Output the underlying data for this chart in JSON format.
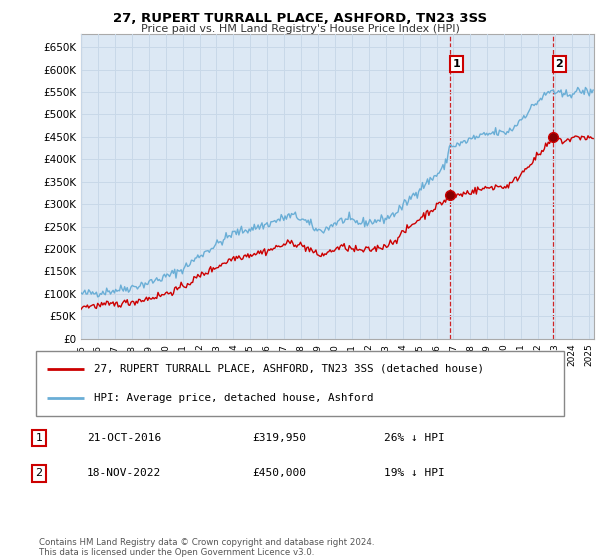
{
  "title": "27, RUPERT TURRALL PLACE, ASHFORD, TN23 3SS",
  "subtitle": "Price paid vs. HM Land Registry's House Price Index (HPI)",
  "ytick_values": [
    0,
    50000,
    100000,
    150000,
    200000,
    250000,
    300000,
    350000,
    400000,
    450000,
    500000,
    550000,
    600000,
    650000
  ],
  "ylim": [
    0,
    680000
  ],
  "xlim_start": 1995.0,
  "xlim_end": 2025.3,
  "hpi_color": "#6aaed6",
  "sale_color": "#cc0000",
  "vline_color": "#cc0000",
  "grid_color": "#c8d8e8",
  "plot_bg_color": "#dce8f4",
  "background_color": "#ffffff",
  "sale1_x": 2016.8,
  "sale1_y": 319950,
  "sale1_label": "1",
  "sale2_x": 2022.88,
  "sale2_y": 450000,
  "sale2_label": "2",
  "legend_line1": "27, RUPERT TURRALL PLACE, ASHFORD, TN23 3SS (detached house)",
  "legend_line2": "HPI: Average price, detached house, Ashford",
  "note1_num": "1",
  "note1_date": "21-OCT-2016",
  "note1_price": "£319,950",
  "note1_hpi": "26% ↓ HPI",
  "note2_num": "2",
  "note2_date": "18-NOV-2022",
  "note2_price": "£450,000",
  "note2_hpi": "19% ↓ HPI",
  "footer": "Contains HM Land Registry data © Crown copyright and database right 2024.\nThis data is licensed under the Open Government Licence v3.0."
}
